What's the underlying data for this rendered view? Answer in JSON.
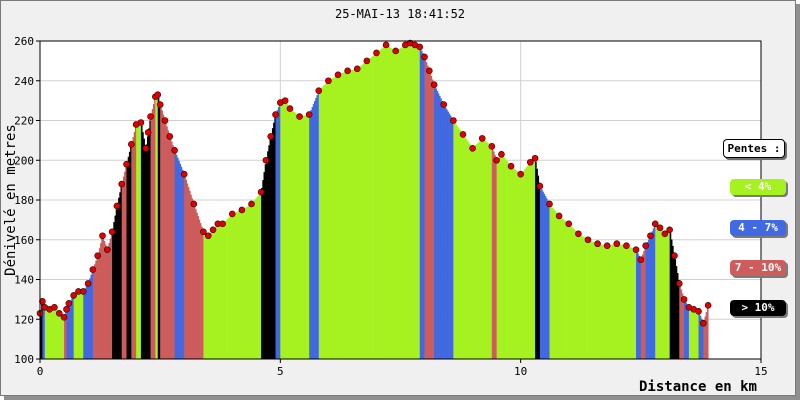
{
  "chart_data": {
    "type": "area",
    "title": "25-MAI-13 18:41:52",
    "xlabel": "Distance en km",
    "ylabel": "Dénivelé en metres",
    "xlim": [
      0,
      15
    ],
    "ylim": [
      100,
      260
    ],
    "x_ticks": [
      "0",
      "5",
      "10",
      "15"
    ],
    "y_ticks": [
      "100",
      "120",
      "140",
      "160",
      "180",
      "200",
      "220",
      "240",
      "260"
    ],
    "grid": true,
    "legend_placement": "right",
    "legend": {
      "title": "Pentes :",
      "items": [
        {
          "label": "< 4%",
          "color": "#a6f221"
        },
        {
          "label": "4 - 7%",
          "color": "#4169e1"
        },
        {
          "label": "7 - 10%",
          "color": "#cd5c5c"
        },
        {
          "label": "> 10%",
          "color": "#000000"
        }
      ]
    },
    "point_color": "#e00000",
    "series": [
      {
        "x": [
          0.0,
          0.05,
          0.1,
          0.2,
          0.3,
          0.4,
          0.5,
          0.55,
          0.6,
          0.7,
          0.8,
          0.9,
          1.0,
          1.1,
          1.2,
          1.3,
          1.4,
          1.5,
          1.6,
          1.7,
          1.8,
          1.9,
          2.0,
          2.1,
          2.2,
          2.25,
          2.3,
          2.4,
          2.45,
          2.5,
          2.6,
          2.7,
          2.8,
          3.0,
          3.2,
          3.4,
          3.5,
          3.6,
          3.7,
          3.8,
          4.0,
          4.2,
          4.4,
          4.6,
          4.7,
          4.8,
          4.9,
          5.0,
          5.1,
          5.2,
          5.4,
          5.6,
          5.8,
          6.0,
          6.2,
          6.4,
          6.6,
          6.8,
          7.0,
          7.2,
          7.4,
          7.6,
          7.7,
          7.8,
          7.9,
          8.0,
          8.1,
          8.2,
          8.4,
          8.6,
          8.8,
          9.0,
          9.2,
          9.4,
          9.5,
          9.6,
          9.8,
          10.0,
          10.2,
          10.3,
          10.4,
          10.6,
          10.8,
          11.0,
          11.2,
          11.4,
          11.6,
          11.8,
          12.0,
          12.2,
          12.4,
          12.5,
          12.6,
          12.7,
          12.8,
          12.9,
          13.0,
          13.1,
          13.2,
          13.3,
          13.4,
          13.5,
          13.6,
          13.7,
          13.8,
          13.9
        ],
        "y": [
          123,
          129,
          126,
          125,
          126,
          123,
          121,
          125,
          128,
          132,
          134,
          134,
          138,
          145,
          152,
          162,
          155,
          164,
          177,
          188,
          198,
          208,
          218,
          219,
          206,
          214,
          222,
          232,
          233,
          228,
          220,
          212,
          205,
          193,
          178,
          164,
          162,
          165,
          168,
          168,
          173,
          175,
          178,
          184,
          200,
          212,
          223,
          229,
          230,
          226,
          222,
          223,
          235,
          240,
          243,
          245,
          246,
          250,
          254,
          258,
          255,
          258,
          259,
          258,
          257,
          252,
          245,
          238,
          228,
          220,
          213,
          206,
          211,
          207,
          200,
          203,
          197,
          193,
          199,
          201,
          187,
          178,
          172,
          168,
          163,
          160,
          158,
          157,
          158,
          157,
          155,
          150,
          157,
          162,
          168,
          166,
          163,
          165,
          152,
          138,
          130,
          126,
          125,
          124,
          118,
          127
        ]
      }
    ]
  }
}
